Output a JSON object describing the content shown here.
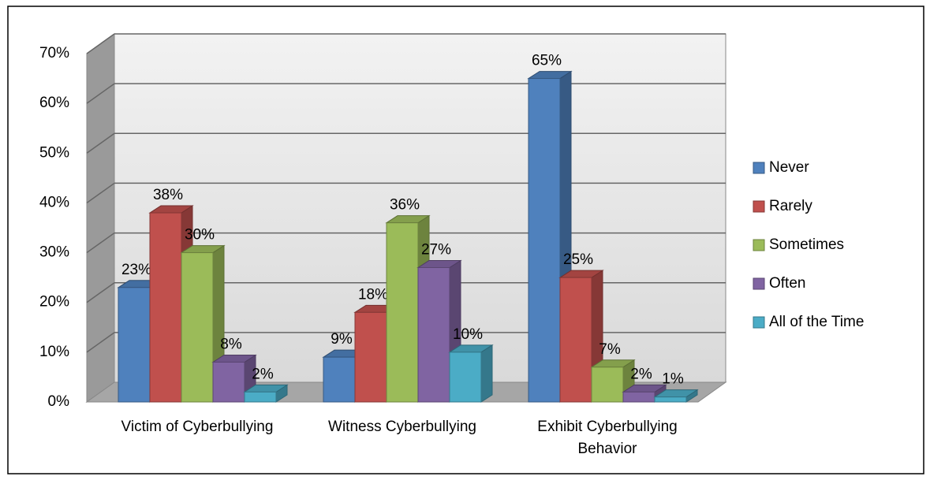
{
  "chart_data": {
    "type": "bar3d",
    "categories": [
      "Victim of Cyberbullying",
      "Witness Cyberbullying",
      "Exhibit Cyberbullying Behavior"
    ],
    "series": [
      {
        "name": "Never",
        "color": "#4f81bd",
        "values": [
          23,
          9,
          65
        ],
        "value_labels": [
          "23%",
          "9%",
          "65%"
        ]
      },
      {
        "name": "Rarely",
        "color": "#c0504d",
        "values": [
          38,
          18,
          25
        ],
        "value_labels": [
          "38%",
          "18%",
          "25%"
        ]
      },
      {
        "name": "Sometimes",
        "color": "#9bbb59",
        "values": [
          30,
          36,
          7
        ],
        "value_labels": [
          "30%",
          "36%",
          "7%"
        ]
      },
      {
        "name": "Often",
        "color": "#8064a2",
        "values": [
          8,
          27,
          2
        ],
        "value_labels": [
          "8%",
          "27%",
          "2%"
        ]
      },
      {
        "name": "All of the Time",
        "color": "#4bacc6",
        "values": [
          2,
          10,
          1
        ],
        "value_labels": [
          "2%",
          "10%",
          "1%"
        ]
      }
    ],
    "ylim": [
      0,
      70
    ],
    "yticks": [
      {
        "value": 0,
        "label": "0%"
      },
      {
        "value": 10,
        "label": "10%"
      },
      {
        "value": 20,
        "label": "20%"
      },
      {
        "value": 30,
        "label": "30%"
      },
      {
        "value": 40,
        "label": "40%"
      },
      {
        "value": 50,
        "label": "50%"
      },
      {
        "value": 60,
        "label": "60%"
      },
      {
        "value": 70,
        "label": "70%"
      }
    ],
    "grid": true,
    "legend": "right"
  }
}
